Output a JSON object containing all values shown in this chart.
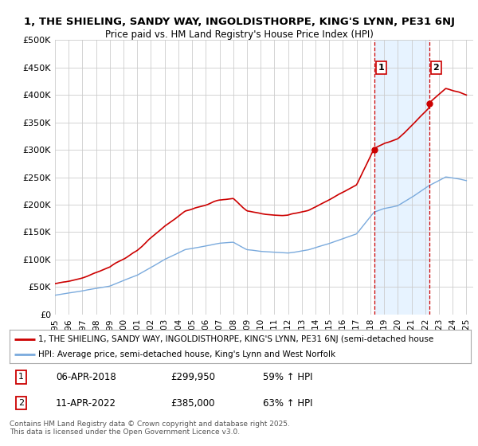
{
  "title_line1": "1, THE SHIELING, SANDY WAY, INGOLDISTHORPE, KING'S LYNN, PE31 6NJ",
  "title_line2": "Price paid vs. HM Land Registry's House Price Index (HPI)",
  "ylim": [
    0,
    500000
  ],
  "xlim_start": 1995.0,
  "xlim_end": 2025.5,
  "xtick_years": [
    1995,
    1996,
    1997,
    1998,
    1999,
    2000,
    2001,
    2002,
    2003,
    2004,
    2005,
    2006,
    2007,
    2008,
    2009,
    2010,
    2011,
    2012,
    2013,
    2014,
    2015,
    2016,
    2017,
    2018,
    2019,
    2020,
    2021,
    2022,
    2023,
    2024,
    2025
  ],
  "transaction1_x": 2018.27,
  "transaction1_y": 299950,
  "transaction1_label": "1",
  "transaction1_date": "06-APR-2018",
  "transaction1_price": "£299,950",
  "transaction1_hpi": "59% ↑ HPI",
  "transaction2_x": 2022.28,
  "transaction2_y": 385000,
  "transaction2_label": "2",
  "transaction2_date": "11-APR-2022",
  "transaction2_price": "£385,000",
  "transaction2_hpi": "63% ↑ HPI",
  "legend_line1": "1, THE SHIELING, SANDY WAY, INGOLDISTHORPE, KING'S LYNN, PE31 6NJ (semi-detached house",
  "legend_line2": "HPI: Average price, semi-detached house, King's Lynn and West Norfolk",
  "footer": "Contains HM Land Registry data © Crown copyright and database right 2025.\nThis data is licensed under the Open Government Licence v3.0.",
  "bg_color": "#ffffff",
  "grid_color": "#cccccc",
  "hpi_line_color": "#7aaadd",
  "price_line_color": "#cc0000",
  "dashed_line_color": "#cc0000",
  "highlight_bg_color": "#ddeeff",
  "highlight_x1": 2018.27,
  "highlight_x2": 2022.28
}
